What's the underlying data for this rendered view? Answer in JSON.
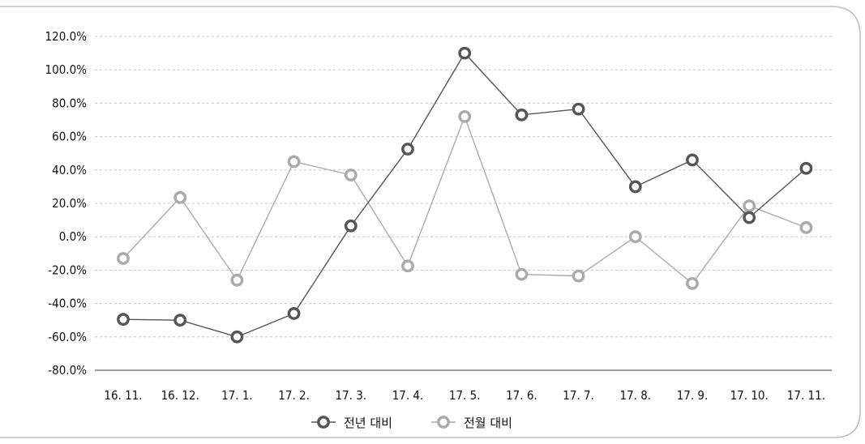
{
  "chart_data": {
    "type": "line",
    "categories": [
      "16. 11.",
      "16. 12.",
      "17. 1.",
      "17. 2.",
      "17. 3.",
      "17. 4.",
      "17. 5.",
      "17. 6.",
      "17. 7.",
      "17. 8.",
      "17. 9.",
      "17. 10.",
      "17. 11."
    ],
    "y_ticks": [
      "120.0%",
      "100.0%",
      "80.0%",
      "60.0%",
      "40.0%",
      "20.0%",
      "0.0%",
      "-20.0%",
      "-40.0%",
      "-60.0%",
      "-80.0%"
    ],
    "ylim": [
      -80,
      120
    ],
    "grid": true,
    "legend_position": "bottom",
    "series": [
      {
        "name": "전년 대비",
        "color": "#555555",
        "values": [
          -49.5,
          -50.0,
          -60.0,
          -46.0,
          6.5,
          52.5,
          110.0,
          73.0,
          76.5,
          30.0,
          46.0,
          11.5,
          41.0
        ]
      },
      {
        "name": "전월 대비",
        "color": "#aaaaaa",
        "values": [
          -13.0,
          23.5,
          -26.0,
          45.0,
          37.0,
          -17.5,
          72.0,
          -22.5,
          -23.5,
          0.0,
          -28.0,
          18.5,
          5.5
        ]
      }
    ]
  }
}
